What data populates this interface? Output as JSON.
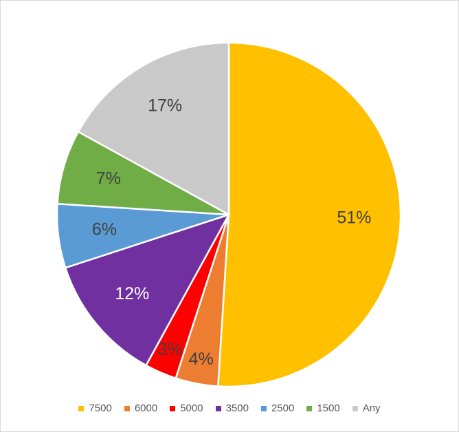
{
  "chart_data": {
    "type": "pie",
    "title": "",
    "categories": [
      "7500",
      "6000",
      "5000",
      "3500",
      "2500",
      "1500",
      "Any"
    ],
    "values": [
      51,
      4,
      3,
      12,
      6,
      7,
      17
    ],
    "labels": [
      "51%",
      "4%",
      "3%",
      "12%",
      "6%",
      "7%",
      "17%"
    ],
    "colors": [
      "#ffc000",
      "#ed7d31",
      "#ff0000",
      "#7030a0",
      "#5b9bd5",
      "#70ad47",
      "#c9c9c9"
    ],
    "label_colors": [
      "#404040",
      "#404040",
      "#404040",
      "#ffffff",
      "#404040",
      "#404040",
      "#404040"
    ],
    "legend_position": "bottom"
  }
}
